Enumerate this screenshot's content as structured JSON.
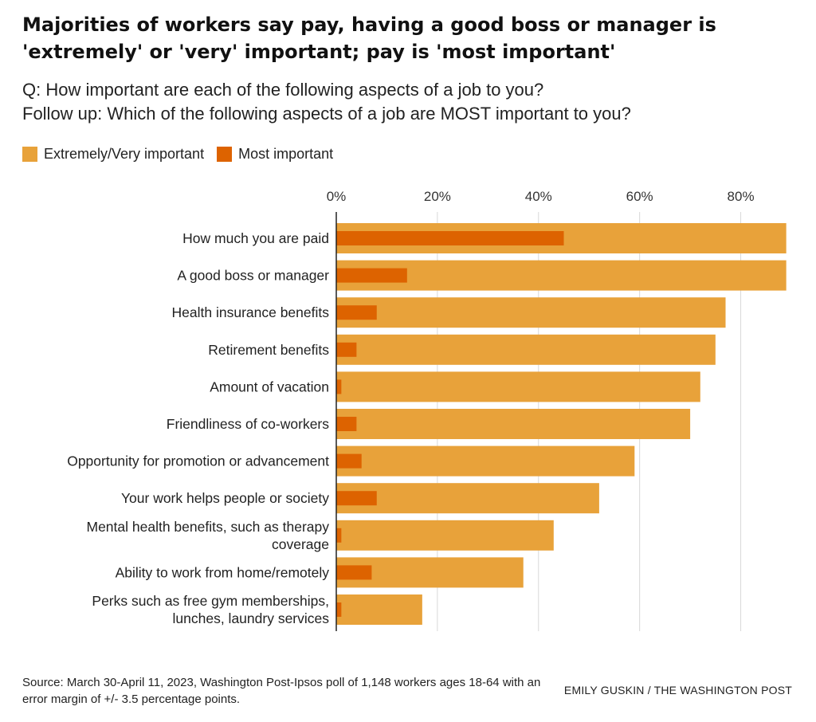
{
  "header": {
    "title": "Majorities of workers say pay, having a good boss or manager is 'extremely' or 'very' important; pay is 'most important'",
    "question": "Q: How important are each of the following aspects of a job to you?",
    "followup": "Follow up: Which of the following aspects of a job are MOST important to you?"
  },
  "footer": {
    "source": "Source: March 30-April 11, 2023, Washington Post-Ipsos poll of 1,148 workers ages 18-64 with an error margin of +/- 3.5 percentage points.",
    "credit": "EMILY GUSKIN / THE WASHINGTON POST"
  },
  "chart_data": {
    "type": "bar",
    "orientation": "horizontal",
    "categories": [
      "How much you are paid",
      "A good boss or manager",
      "Health insurance benefits",
      "Retirement benefits",
      "Amount of vacation",
      "Friendliness of co-workers",
      "Opportunity for promotion or advancement",
      "Your work helps people or society",
      "Mental health benefits, such as therapy coverage",
      "Ability to work from home/remotely",
      "Perks such as free gym memberships, lunches, laundry services"
    ],
    "category_lines": [
      [
        "How much you are paid"
      ],
      [
        "A good boss or manager"
      ],
      [
        "Health insurance benefits"
      ],
      [
        "Retirement benefits"
      ],
      [
        "Amount of vacation"
      ],
      [
        "Friendliness of co-workers"
      ],
      [
        "Opportunity for promotion or advancement"
      ],
      [
        "Your work helps people or society"
      ],
      [
        "Mental health benefits, such as therapy",
        "coverage"
      ],
      [
        "Ability to work from home/remotely"
      ],
      [
        "Perks such as free gym memberships,",
        "lunches, laundry services"
      ]
    ],
    "series": [
      {
        "name": "Extremely/Very important",
        "color": "#e8a23a",
        "values": [
          89,
          89,
          77,
          75,
          72,
          70,
          59,
          52,
          43,
          37,
          17
        ]
      },
      {
        "name": "Most important",
        "color": "#dd6300",
        "values": [
          45,
          14,
          8,
          4,
          1,
          4,
          5,
          8,
          1,
          7,
          1
        ]
      }
    ],
    "xlim": [
      0,
      90
    ],
    "ticks": [
      0,
      20,
      40,
      60,
      80
    ],
    "tick_labels": [
      "0%",
      "20%",
      "40%",
      "60%",
      "80%"
    ],
    "grid": true,
    "legend_position": "top-left"
  }
}
